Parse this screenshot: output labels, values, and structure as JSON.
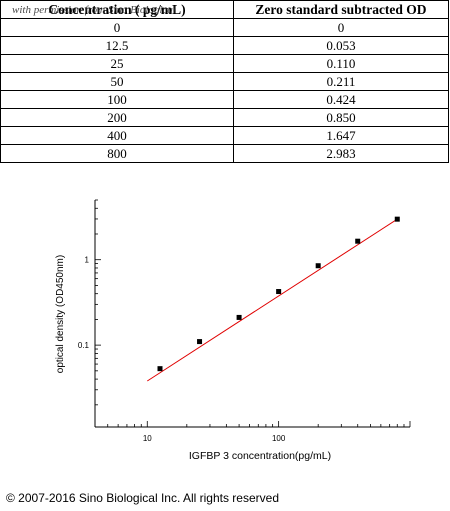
{
  "watermark": "with permission from Sino Biological",
  "table": {
    "headers": [
      "Concentration ( pg/mL)",
      "Zero standard subtracted OD"
    ],
    "rows": [
      [
        "0",
        "0"
      ],
      [
        "12.5",
        "0.053"
      ],
      [
        "25",
        "0.110"
      ],
      [
        "50",
        "0.211"
      ],
      [
        "100",
        "0.424"
      ],
      [
        "200",
        "0.850"
      ],
      [
        "400",
        "1.647"
      ],
      [
        "800",
        "2.983"
      ]
    ]
  },
  "chart_data": {
    "type": "scatter",
    "xlabel": "IGFBP 3  concentration(pg/mL)",
    "ylabel": "optical density (OD450nm)",
    "x_scale": "log",
    "y_scale": "log",
    "xlim": [
      4,
      1000
    ],
    "ylim": [
      0.011,
      5
    ],
    "x_ticks": [
      10,
      100
    ],
    "x_tick_labels": [
      "10",
      "100"
    ],
    "y_ticks": [
      0.1,
      1
    ],
    "y_tick_labels": [
      "0.1",
      "1"
    ],
    "grid": false,
    "marker_color": "#000000",
    "fit_color": "#e00000",
    "fit_line": {
      "x": [
        10,
        800
      ],
      "y": [
        0.038,
        2.983
      ]
    },
    "x": [
      12.5,
      25,
      50,
      100,
      200,
      400,
      800
    ],
    "y": [
      0.053,
      0.11,
      0.211,
      0.424,
      0.85,
      1.647,
      2.983
    ]
  },
  "copyright": "© 2007-2016 Sino Biological Inc. All rights reserved"
}
